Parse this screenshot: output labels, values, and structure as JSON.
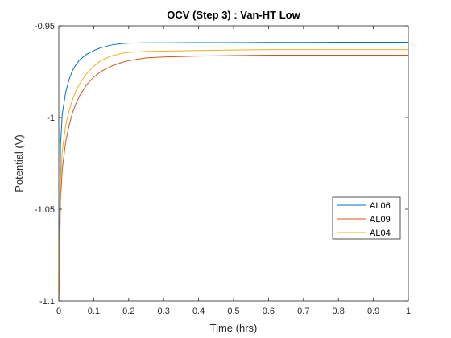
{
  "chart_data": {
    "type": "line",
    "title": "OCV (Step 3) : Van-HT Low",
    "xlabel": "Time (hrs)",
    "ylabel": "Potential (V)",
    "xlim": [
      0,
      1
    ],
    "ylim": [
      -1.1,
      -0.95
    ],
    "xticks": [
      0,
      0.1,
      0.2,
      0.3,
      0.4,
      0.5,
      0.6,
      0.7,
      0.8,
      0.9,
      1
    ],
    "xtick_labels": [
      "0",
      "0.1",
      "0.2",
      "0.3",
      "0.4",
      "0.5",
      "0.6",
      "0.7",
      "0.8",
      "0.9",
      "1"
    ],
    "yticks": [
      -1.1,
      -1.05,
      -1,
      -0.95
    ],
    "ytick_labels": [
      "-1.1",
      "-1.05",
      "-1",
      "-0.95"
    ],
    "grid": false,
    "legend_position": "right",
    "series": [
      {
        "name": "AL06",
        "color": "#0072BD",
        "x": [
          0,
          0.005,
          0.01,
          0.02,
          0.03,
          0.04,
          0.05,
          0.06,
          0.08,
          0.1,
          0.12,
          0.15,
          0.18,
          0.2,
          0.25,
          0.3,
          0.4,
          0.5,
          0.6,
          0.7,
          0.8,
          0.9,
          1.0
        ],
        "values": [
          -1.1,
          -1.015,
          -0.998,
          -0.986,
          -0.979,
          -0.974,
          -0.971,
          -0.9685,
          -0.9655,
          -0.9635,
          -0.962,
          -0.9605,
          -0.9597,
          -0.9595,
          -0.9593,
          -0.9593,
          -0.9592,
          -0.9592,
          -0.9591,
          -0.9591,
          -0.959,
          -0.959,
          -0.959
        ]
      },
      {
        "name": "AL09",
        "color": "#D95319",
        "x": [
          0,
          0.005,
          0.01,
          0.02,
          0.03,
          0.04,
          0.05,
          0.06,
          0.08,
          0.1,
          0.12,
          0.15,
          0.18,
          0.2,
          0.25,
          0.3,
          0.4,
          0.5,
          0.6,
          0.7,
          0.8,
          0.9,
          1.0
        ],
        "values": [
          -1.1,
          -1.045,
          -1.028,
          -1.013,
          -1.004,
          -0.997,
          -0.992,
          -0.988,
          -0.982,
          -0.978,
          -0.975,
          -0.972,
          -0.97,
          -0.969,
          -0.9675,
          -0.967,
          -0.9665,
          -0.9662,
          -0.966,
          -0.966,
          -0.966,
          -0.966,
          -0.966
        ]
      },
      {
        "name": "AL04",
        "color": "#EDB120",
        "x": [
          0,
          0.005,
          0.01,
          0.02,
          0.03,
          0.04,
          0.05,
          0.06,
          0.08,
          0.1,
          0.12,
          0.15,
          0.18,
          0.2,
          0.25,
          0.3,
          0.4,
          0.5,
          0.6,
          0.7,
          0.8,
          0.9,
          1.0
        ],
        "values": [
          -1.1,
          -1.035,
          -1.018,
          -1.004,
          -0.996,
          -0.99,
          -0.985,
          -0.9815,
          -0.976,
          -0.972,
          -0.969,
          -0.9665,
          -0.965,
          -0.9645,
          -0.964,
          -0.9638,
          -0.9635,
          -0.9632,
          -0.963,
          -0.963,
          -0.963,
          -0.963,
          -0.963
        ]
      }
    ]
  }
}
